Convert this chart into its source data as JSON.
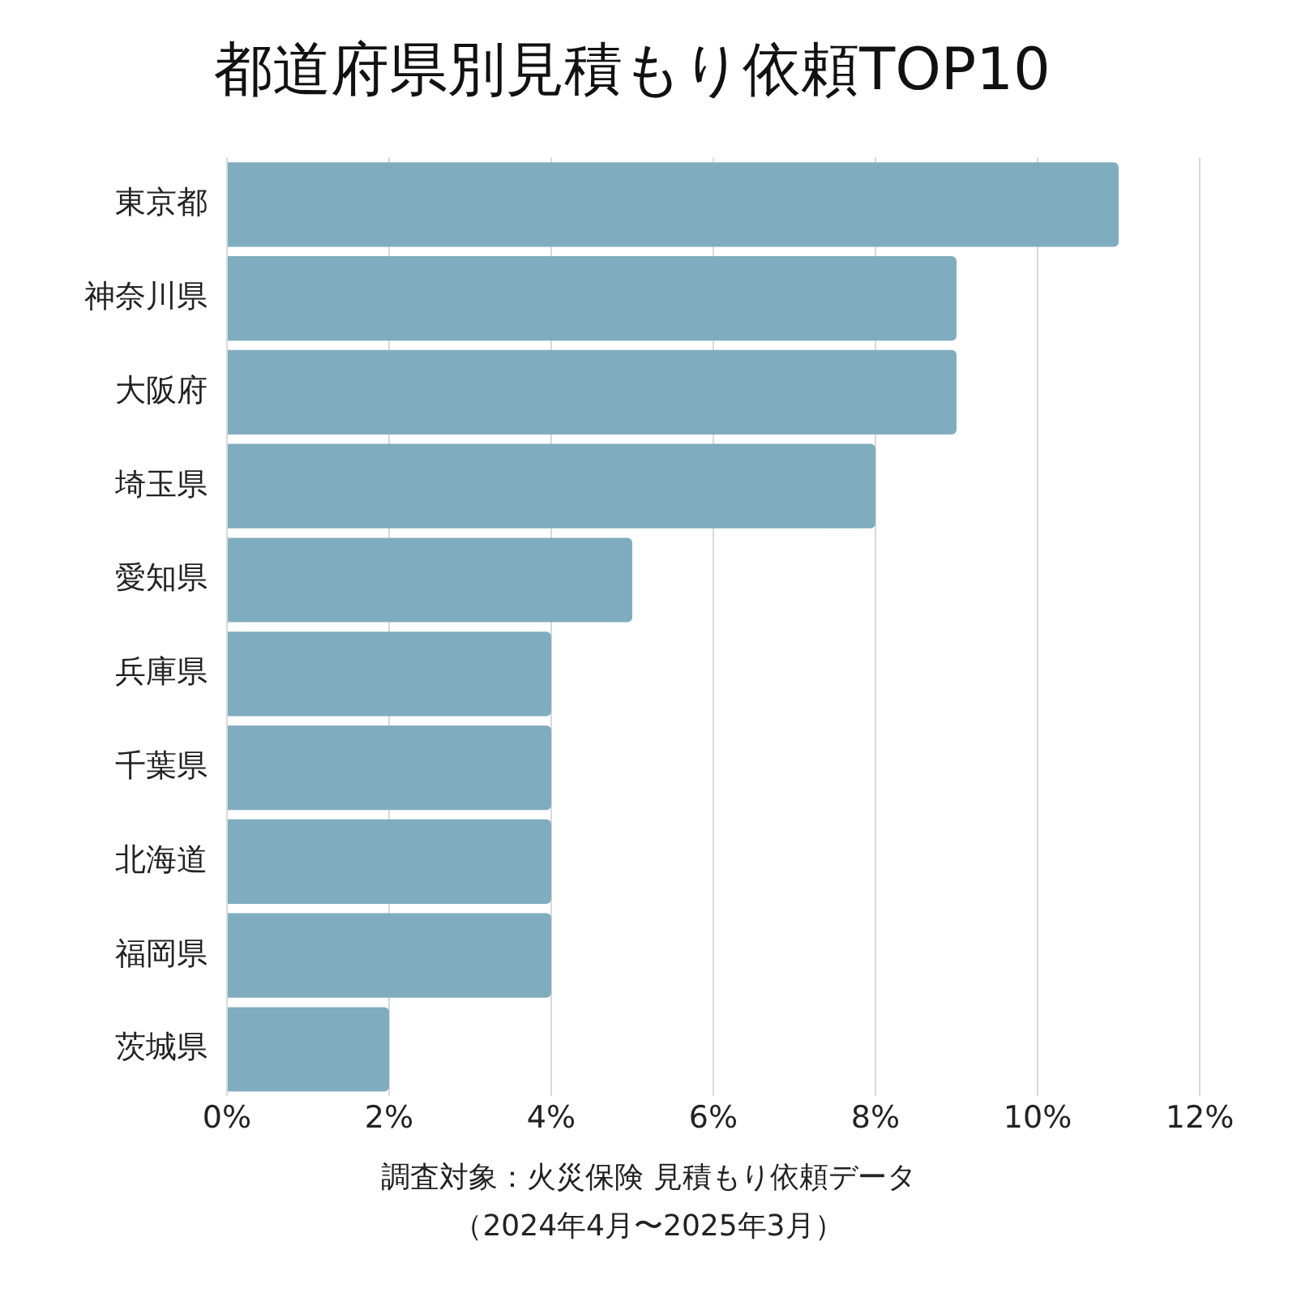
{
  "chart_data": {
    "type": "bar",
    "orientation": "horizontal",
    "title": "都道府県別見積もり依頼TOP10",
    "categories": [
      "東京都",
      "神奈川県",
      "大阪府",
      "埼玉県",
      "愛知県",
      "兵庫県",
      "千葉県",
      "北海道",
      "福岡県",
      "茨城県"
    ],
    "values": [
      11,
      9,
      9,
      8,
      5,
      4,
      4,
      4,
      4,
      2
    ],
    "color": "#7fadbf",
    "xlim": [
      0,
      12
    ],
    "xticks": [
      {
        "value": 0,
        "label": "0%"
      },
      {
        "value": 2,
        "label": "2%"
      },
      {
        "value": 4,
        "label": "4%"
      },
      {
        "value": 6,
        "label": "6%"
      },
      {
        "value": 8,
        "label": "8%"
      },
      {
        "value": 10,
        "label": "10%"
      },
      {
        "value": 12,
        "label": "12%"
      }
    ],
    "grid": "x",
    "annotations": [
      "調査対象：火災保険 見積もり依頼データ",
      "（2024年4月〜2025年3月）"
    ]
  }
}
